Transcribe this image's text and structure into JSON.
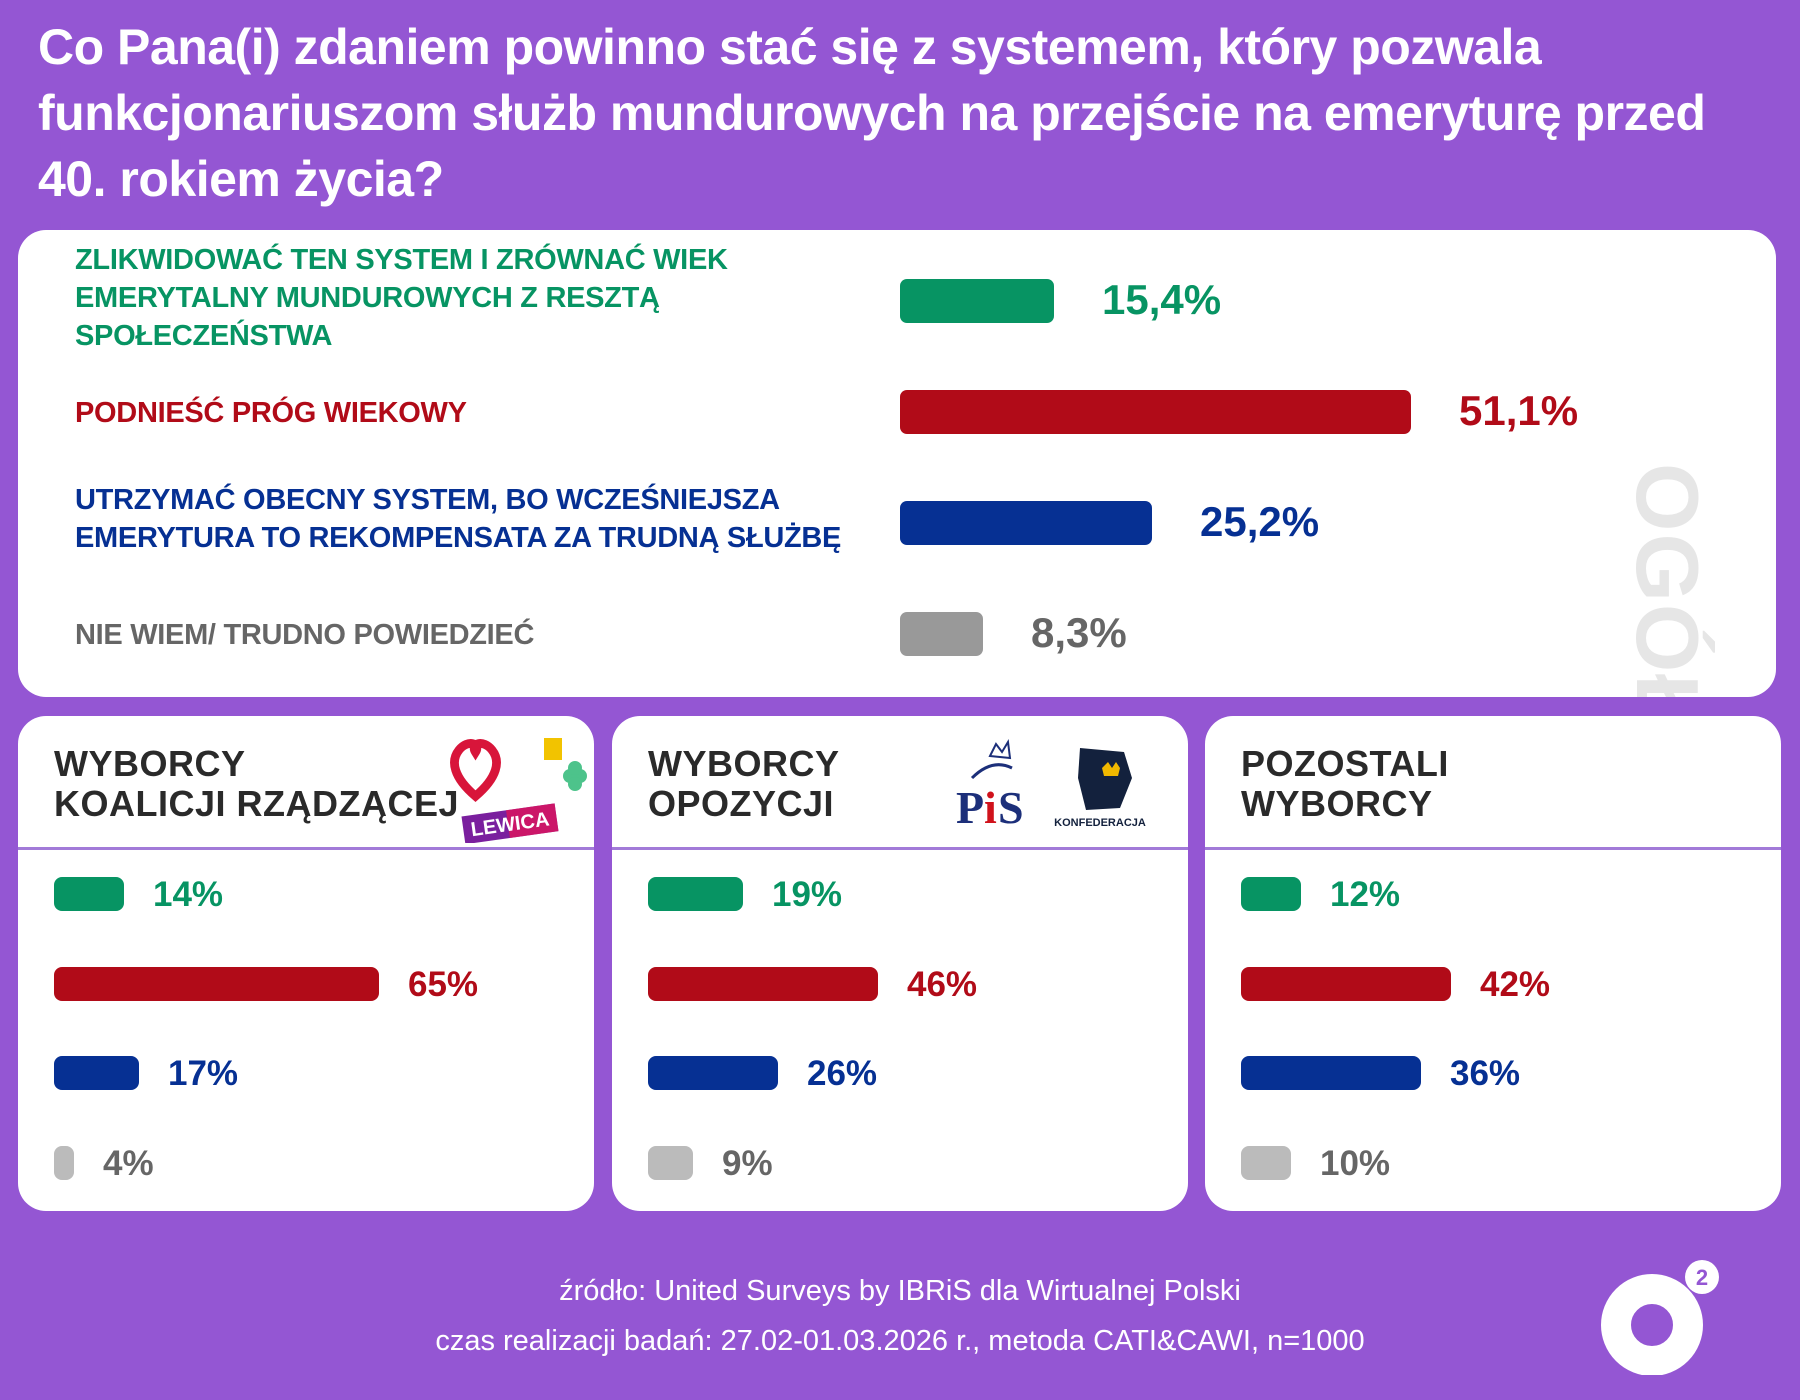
{
  "colors": {
    "background": "#9456d3",
    "green": "#079463",
    "red": "#b10b18",
    "blue": "#063093",
    "gray": "#999999",
    "gray_light": "#bbbbbb",
    "gray_text": "#666666"
  },
  "title": "Co Pana(i) zdaniem powinno stać się z systemem, który pozwala funkcjonariuszom służb mundurowych na przejście na emeryturę przed 40. rokiem życia?",
  "chart_data": [
    {
      "type": "bar",
      "orientation": "horizontal",
      "title": "OGÓŁEM",
      "categories": [
        "ZLIKWIDOWAĆ TEN SYSTEM I ZRÓWNAĆ WIEK EMERYTALNY MUNDUROWYCH Z RESZTĄ SPOŁECZEŃSTWA",
        "PODNIEŚĆ PRÓG WIEKOWY",
        "UTRZYMAĆ OBECNY SYSTEM, BO WCZEŚNIEJSZA EMERYTURA TO REKOMPENSATA ZA TRUDNĄ SŁUŻBĘ",
        "NIE WIEM/ TRUDNO POWIEDZIEĆ"
      ],
      "values": [
        15.4,
        51.1,
        25.2,
        8.3
      ],
      "labels": [
        "15,4%",
        "51,1%",
        "25,2%",
        "8,3%"
      ]
    },
    {
      "type": "bar",
      "orientation": "horizontal",
      "title": "WYBORCY KOALICJI RZĄDZĄCEJ",
      "title_lines": [
        "WYBORCY",
        "KOALICJI RZĄDZĄCEJ"
      ],
      "logos": [
        "LEWICA"
      ],
      "values": [
        14,
        65,
        17,
        4
      ],
      "labels": [
        "14%",
        "65%",
        "17%",
        "4%"
      ]
    },
    {
      "type": "bar",
      "orientation": "horizontal",
      "title": "WYBORCY OPOZYCJI",
      "title_lines": [
        "WYBORCY",
        "OPOZYCJI"
      ],
      "logos": [
        "PiS",
        "KONFEDERACJA"
      ],
      "values": [
        19,
        46,
        26,
        9
      ],
      "labels": [
        "19%",
        "46%",
        "26%",
        "9%"
      ]
    },
    {
      "type": "bar",
      "orientation": "horizontal",
      "title": "POZOSTALI WYBORCY",
      "title_lines": [
        "POZOSTALI",
        "WYBORCY"
      ],
      "values": [
        12,
        42,
        36,
        10
      ],
      "labels": [
        "12%",
        "42%",
        "36%",
        "10%"
      ]
    }
  ],
  "footer": {
    "source": "źródło: United Surveys by IBRiS dla Wirtualnej Polski",
    "method": "czas realizacji badań:  27.02-01.03.2026 r., metoda CATI&CAWI, n=1000"
  },
  "brand": "o2"
}
